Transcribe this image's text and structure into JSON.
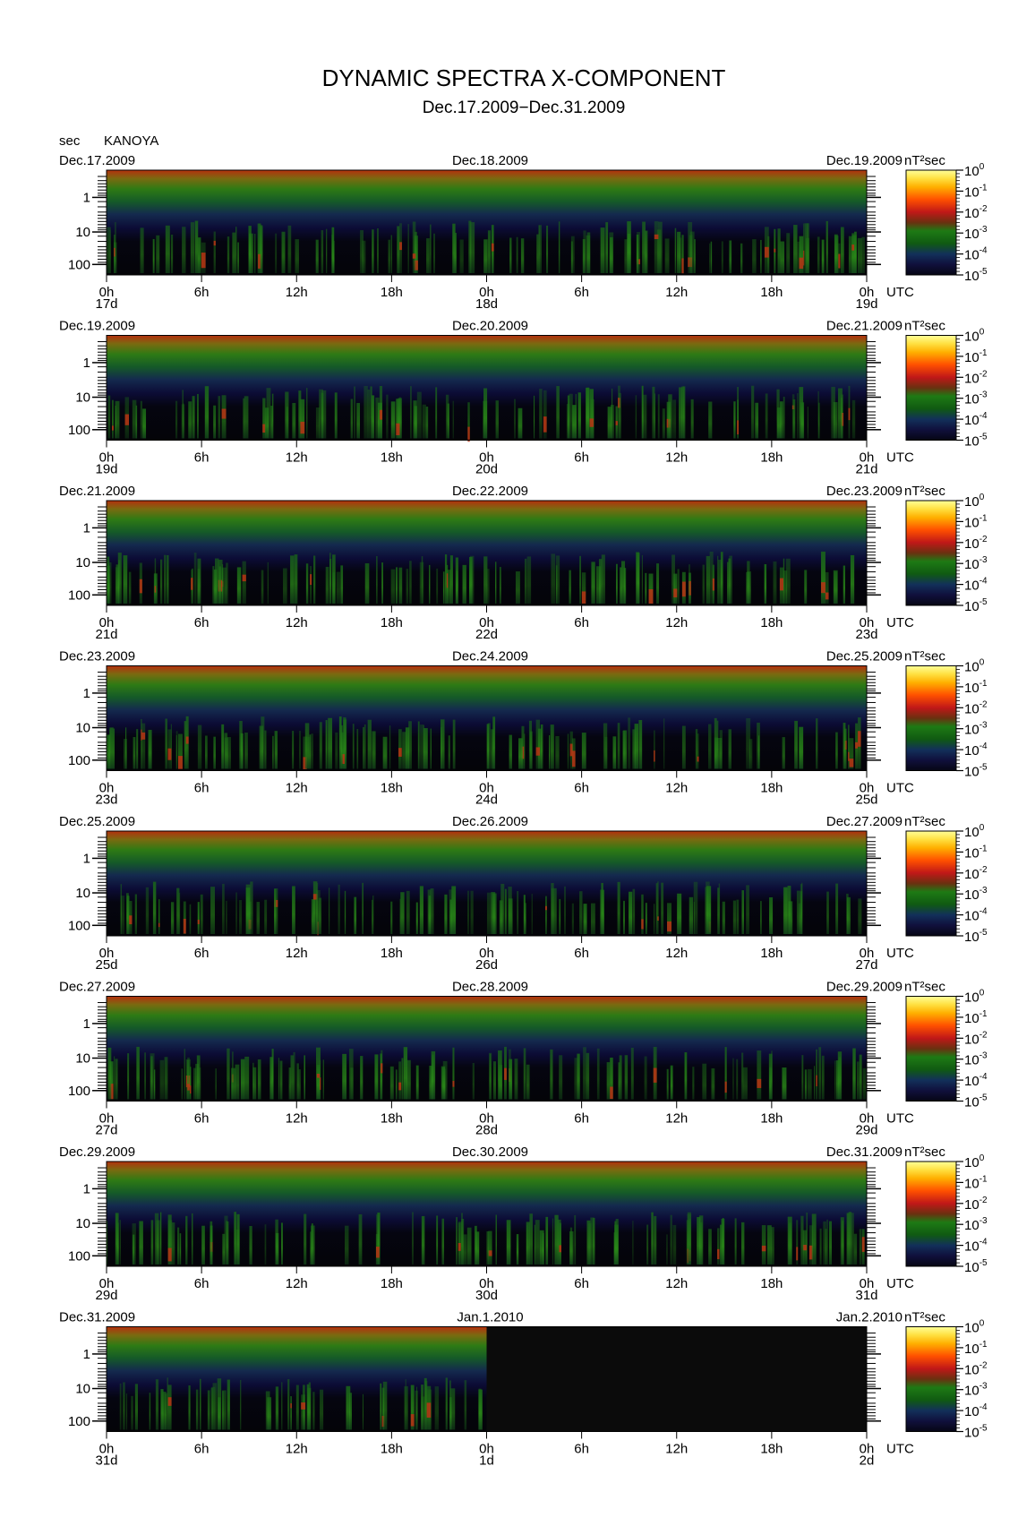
{
  "header": {
    "title": "DYNAMIC SPECTRA X-COMPONENT",
    "subtitle": "Dec.17.2009−Dec.31.2009",
    "yunit": "sec",
    "station": "KANOYA"
  },
  "chart_data": {
    "type": "heatmap",
    "title": "DYNAMIC SPECTRA X-COMPONENT",
    "subtitle": "Dec.17.2009−Dec.31.2009",
    "ylabel": "sec",
    "station": "KANOYA",
    "time_unit": "UTC",
    "colorbar_unit": "nT²sec",
    "y_ticks": [
      "1",
      "10",
      "100"
    ],
    "x_tick_labels": [
      "0h",
      "6h",
      "12h",
      "18h",
      "0h",
      "6h",
      "12h",
      "18h",
      "0h"
    ],
    "colorbar": {
      "scale": "log",
      "ticks": [
        {
          "base": "10",
          "exp": "0"
        },
        {
          "base": "10",
          "exp": "-1"
        },
        {
          "base": "10",
          "exp": "-2"
        },
        {
          "base": "10",
          "exp": "-3"
        },
        {
          "base": "10",
          "exp": "-4"
        },
        {
          "base": "10",
          "exp": "-5"
        }
      ],
      "colors": [
        "#ffff66",
        "#ffc000",
        "#ff6000",
        "#d81818",
        "#a02010",
        "#208010",
        "#106010",
        "#0c3010",
        "#10105a",
        "#101038",
        "#080820"
      ]
    },
    "panels": [
      {
        "date_left": "Dec.17.2009",
        "date_mid": "Dec.18.2009",
        "date_right": "Dec.19.2009",
        "day_start": "17d",
        "day_mid": "18d",
        "day_end": "19d",
        "data_until": 1.0
      },
      {
        "date_left": "Dec.19.2009",
        "date_mid": "Dec.20.2009",
        "date_right": "Dec.21.2009",
        "day_start": "19d",
        "day_mid": "20d",
        "day_end": "21d",
        "data_until": 1.0
      },
      {
        "date_left": "Dec.21.2009",
        "date_mid": "Dec.22.2009",
        "date_right": "Dec.23.2009",
        "day_start": "21d",
        "day_mid": "22d",
        "day_end": "23d",
        "data_until": 1.0
      },
      {
        "date_left": "Dec.23.2009",
        "date_mid": "Dec.24.2009",
        "date_right": "Dec.25.2009",
        "day_start": "23d",
        "day_mid": "24d",
        "day_end": "25d",
        "data_until": 1.0
      },
      {
        "date_left": "Dec.25.2009",
        "date_mid": "Dec.26.2009",
        "date_right": "Dec.27.2009",
        "day_start": "25d",
        "day_mid": "26d",
        "day_end": "27d",
        "data_until": 1.0
      },
      {
        "date_left": "Dec.27.2009",
        "date_mid": "Dec.28.2009",
        "date_right": "Dec.29.2009",
        "day_start": "27d",
        "day_mid": "28d",
        "day_end": "29d",
        "data_until": 1.0
      },
      {
        "date_left": "Dec.29.2009",
        "date_mid": "Dec.30.2009",
        "date_right": "Dec.31.2009",
        "day_start": "29d",
        "day_mid": "30d",
        "day_end": "31d",
        "data_until": 1.0
      },
      {
        "date_left": "Dec.31.2009",
        "date_mid": "Jan.1.2010",
        "date_right": "Jan.2.2010",
        "day_start": "31d",
        "day_mid": "1d",
        "day_end": "2d",
        "data_until": 0.5
      }
    ]
  }
}
